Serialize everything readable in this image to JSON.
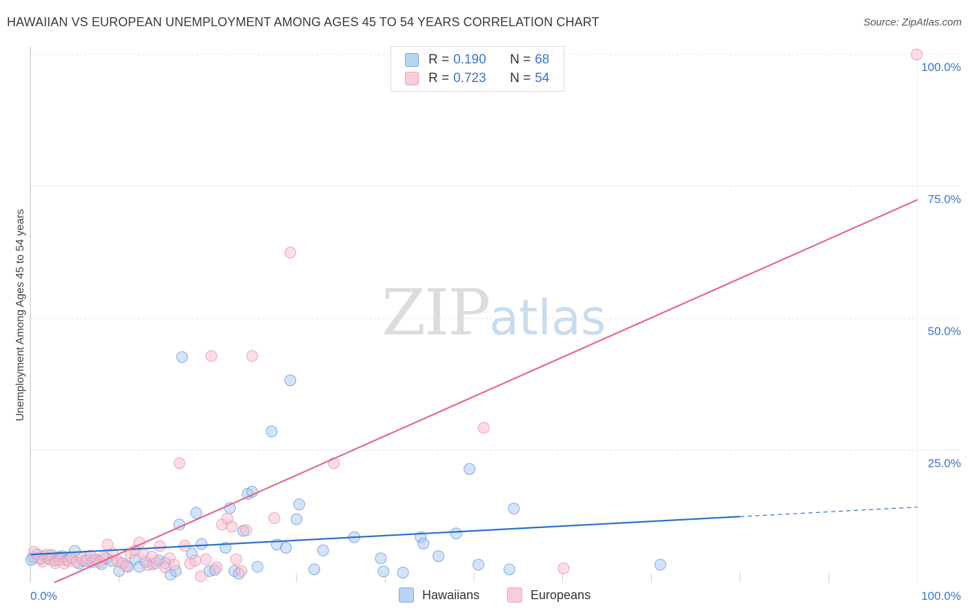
{
  "header": {
    "title": "HAWAIIAN VS EUROPEAN UNEMPLOYMENT AMONG AGES 45 TO 54 YEARS CORRELATION CHART",
    "source": "Source: ZipAtlas.com"
  },
  "watermark": {
    "zip": "ZIP",
    "atlas": "atlas"
  },
  "legend": {
    "rows": [
      {
        "r_label": "R =",
        "r_value": "0.190",
        "n_label": "N =",
        "n_value": "68"
      },
      {
        "r_label": "R =",
        "r_value": "0.723",
        "n_label": "N =",
        "n_value": "54"
      }
    ]
  },
  "bottom_legend": {
    "hawaiians": "Hawaiians",
    "europeans": "Europeans"
  },
  "colors": {
    "hawaiians_fill": "#a9c8f0",
    "hawaiians_stroke": "#6f9fdc",
    "hawaiians_line": "#2a6fc9",
    "europeans_fill": "#f7bccd",
    "europeans_stroke": "#e996b0",
    "europeans_line": "#e0688f",
    "tick_text": "#3b74c9",
    "grid": "#dddddd"
  },
  "chart_data": {
    "type": "scatter",
    "title": "HAWAIIAN VS EUROPEAN UNEMPLOYMENT AMONG AGES 45 TO 54 YEARS CORRELATION CHART",
    "xlabel": "",
    "ylabel": "Unemployment Among Ages 45 to 54 years",
    "xlim": [
      0,
      100
    ],
    "ylim": [
      0,
      100
    ],
    "x_tick_labels": [
      "0.0%",
      "100.0%"
    ],
    "y_ticks": [
      {
        "value": 25,
        "label": "25.0%"
      },
      {
        "value": 50,
        "label": "50.0%"
      },
      {
        "value": 75,
        "label": "75.0%"
      },
      {
        "value": 100,
        "label": "100.0%"
      }
    ],
    "series": [
      {
        "name": "Hawaiians",
        "r": 0.19,
        "n": 68,
        "trend": {
          "x0": 0,
          "y0": 5.3,
          "x1": 80,
          "y1": 12.5,
          "dash_to_x": 100,
          "dash_to_y": 14.3
        },
        "points": [
          [
            0.3,
            4.8
          ],
          [
            0.8,
            5.3
          ],
          [
            1.2,
            4.5
          ],
          [
            1.6,
            5.0
          ],
          [
            2.0,
            4.6
          ],
          [
            2.4,
            5.2
          ],
          [
            2.8,
            4.2
          ],
          [
            3.2,
            4.8
          ],
          [
            3.6,
            5.0
          ],
          [
            4.0,
            4.3
          ],
          [
            4.5,
            4.7
          ],
          [
            5.0,
            6.0
          ],
          [
            5.5,
            3.6
          ],
          [
            6.0,
            4.1
          ],
          [
            6.5,
            4.4
          ],
          [
            7.0,
            3.9
          ],
          [
            7.5,
            4.3
          ],
          [
            8.0,
            3.5
          ],
          [
            8.6,
            4.6
          ],
          [
            9.2,
            4.1
          ],
          [
            10.0,
            2.2
          ],
          [
            10.5,
            3.6
          ],
          [
            11.0,
            3.0
          ],
          [
            11.8,
            4.4
          ],
          [
            12.3,
            3.0
          ],
          [
            13.0,
            3.9
          ],
          [
            13.8,
            3.5
          ],
          [
            14.5,
            4.2
          ],
          [
            15.2,
            3.7
          ],
          [
            15.8,
            1.5
          ],
          [
            16.4,
            2.2
          ],
          [
            16.8,
            11.0
          ],
          [
            17.1,
            42.7
          ],
          [
            18.2,
            5.5
          ],
          [
            18.7,
            13.2
          ],
          [
            19.3,
            7.3
          ],
          [
            20.2,
            2.2
          ],
          [
            20.8,
            2.4
          ],
          [
            22.0,
            6.6
          ],
          [
            22.5,
            14.1
          ],
          [
            23.0,
            2.2
          ],
          [
            23.5,
            1.7
          ],
          [
            24.0,
            9.8
          ],
          [
            24.5,
            16.8
          ],
          [
            25.0,
            17.2
          ],
          [
            25.6,
            3.0
          ],
          [
            27.2,
            28.6
          ],
          [
            27.8,
            7.2
          ],
          [
            28.8,
            6.6
          ],
          [
            29.3,
            38.3
          ],
          [
            30.0,
            12.0
          ],
          [
            30.3,
            14.8
          ],
          [
            32.0,
            2.5
          ],
          [
            33.0,
            6.1
          ],
          [
            36.5,
            8.6
          ],
          [
            39.5,
            4.6
          ],
          [
            39.8,
            2.1
          ],
          [
            42.0,
            1.9
          ],
          [
            44.0,
            8.6
          ],
          [
            44.3,
            7.4
          ],
          [
            46.0,
            5.0
          ],
          [
            48.0,
            9.3
          ],
          [
            49.5,
            21.5
          ],
          [
            50.5,
            3.4
          ],
          [
            54.0,
            2.5
          ],
          [
            54.5,
            14.0
          ],
          [
            71.0,
            3.4
          ],
          [
            0.1,
            4.3
          ]
        ]
      },
      {
        "name": "Europeans",
        "r": 0.723,
        "n": 54,
        "trend": {
          "x0": 2.7,
          "y0": 0,
          "x1": 100,
          "y1": 72.5
        },
        "points": [
          [
            0.4,
            5.8
          ],
          [
            0.9,
            4.6
          ],
          [
            1.4,
            4.0
          ],
          [
            1.9,
            5.3
          ],
          [
            2.3,
            4.3
          ],
          [
            2.8,
            3.7
          ],
          [
            3.3,
            4.3
          ],
          [
            3.8,
            3.6
          ],
          [
            4.3,
            4.1
          ],
          [
            4.7,
            4.7
          ],
          [
            5.2,
            3.9
          ],
          [
            5.8,
            4.6
          ],
          [
            6.3,
            4.1
          ],
          [
            6.8,
            5.1
          ],
          [
            7.3,
            4.4
          ],
          [
            7.8,
            3.9
          ],
          [
            8.3,
            4.8
          ],
          [
            8.7,
            7.2
          ],
          [
            9.3,
            5.5
          ],
          [
            9.8,
            4.2
          ],
          [
            10.3,
            3.7
          ],
          [
            10.8,
            3.1
          ],
          [
            11.3,
            5.6
          ],
          [
            11.8,
            6.1
          ],
          [
            12.3,
            7.6
          ],
          [
            12.7,
            5.5
          ],
          [
            13.2,
            3.3
          ],
          [
            13.7,
            4.9
          ],
          [
            14.2,
            3.7
          ],
          [
            14.6,
            6.9
          ],
          [
            15.2,
            2.9
          ],
          [
            15.7,
            4.6
          ],
          [
            16.2,
            3.4
          ],
          [
            16.8,
            22.6
          ],
          [
            17.4,
            7.0
          ],
          [
            18.0,
            3.6
          ],
          [
            18.6,
            4.2
          ],
          [
            19.2,
            1.2
          ],
          [
            19.8,
            4.4
          ],
          [
            20.4,
            42.9
          ],
          [
            21.0,
            2.9
          ],
          [
            21.6,
            11.0
          ],
          [
            22.2,
            12.1
          ],
          [
            22.7,
            10.6
          ],
          [
            23.2,
            4.4
          ],
          [
            23.8,
            2.2
          ],
          [
            24.3,
            9.9
          ],
          [
            25.0,
            42.9
          ],
          [
            27.5,
            12.2
          ],
          [
            29.3,
            62.5
          ],
          [
            34.2,
            22.6
          ],
          [
            51.1,
            29.3
          ],
          [
            60.1,
            2.7
          ],
          [
            99.9,
            100.0
          ]
        ]
      }
    ]
  },
  "y_axis_title": "Unemployment Among Ages 45 to 54 years"
}
